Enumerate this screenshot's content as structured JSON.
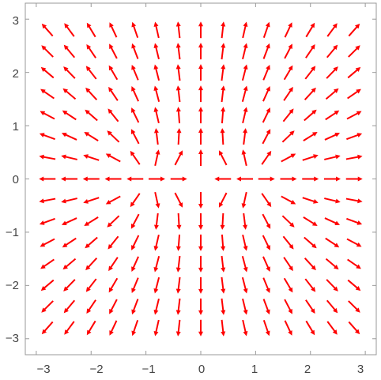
{
  "chart_data": {
    "type": "vector-field",
    "xlim": [
      -3.2,
      3.2
    ],
    "ylim": [
      -3.3,
      3.3
    ],
    "x_ticks": [
      -3,
      -2,
      -1,
      0,
      1,
      2,
      3
    ],
    "y_ticks": [
      -3,
      -2,
      -1,
      0,
      1,
      2,
      3
    ],
    "x_tick_labels": [
      "−3",
      "−2",
      "−1",
      "0",
      "1",
      "2",
      "3"
    ],
    "y_tick_labels": [
      "3",
      "2",
      "1",
      "0",
      "−1",
      "−2",
      "−3"
    ],
    "sources": [
      {
        "x": -1,
        "y": 0
      },
      {
        "x": 1,
        "y": 0
      }
    ],
    "grid_points": 15,
    "grid": false,
    "colors": {
      "small_magnitude": "#000000",
      "mid_low": "#ffa500",
      "mid": "#a0409a",
      "mid_high": "#3f10c0",
      "large_magnitude": "#ff0000"
    }
  }
}
